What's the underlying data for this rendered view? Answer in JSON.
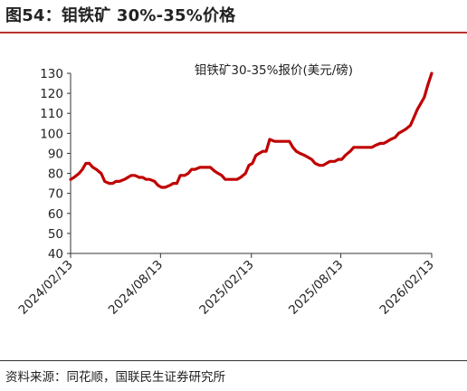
{
  "figure": {
    "title": "图54：钼铁矿 30%-35%价格",
    "source": "资料来源：同花顺，国联民生证券研究所"
  },
  "colors": {
    "line": "#c00000",
    "rule": "#b8322f",
    "axis": "#333333"
  },
  "chart_data": {
    "type": "line",
    "title": "钼铁矿30-35%报价(美元/磅)",
    "xlabel": "",
    "ylabel": "",
    "ylim": [
      40,
      130
    ],
    "yticks": [
      40,
      50,
      60,
      70,
      80,
      90,
      100,
      110,
      120,
      130
    ],
    "xlim": [
      "2024/02/13",
      "2026/02/13"
    ],
    "xticks": [
      "2024/02/13",
      "2024/08/13",
      "2025/02/13",
      "2025/08/13",
      "2026/02/13"
    ],
    "grid": false,
    "legend": "none",
    "series": [
      {
        "name": "钼铁矿30-35%报价(美元/磅)",
        "x": [
          "2024/02/13",
          "2024/02/20",
          "2024/03/01",
          "2024/03/08",
          "2024/03/15",
          "2024/03/22",
          "2024/03/29",
          "2024/04/05",
          "2024/04/15",
          "2024/04/22",
          "2024/05/01",
          "2024/05/08",
          "2024/05/15",
          "2024/05/22",
          "2024/06/01",
          "2024/06/08",
          "2024/06/15",
          "2024/06/22",
          "2024/07/01",
          "2024/07/08",
          "2024/07/15",
          "2024/07/22",
          "2024/08/01",
          "2024/08/08",
          "2024/08/15",
          "2024/08/22",
          "2024/09/01",
          "2024/09/08",
          "2024/09/15",
          "2024/09/22",
          "2024/10/01",
          "2024/10/08",
          "2024/10/15",
          "2024/10/22",
          "2024/11/01",
          "2024/11/08",
          "2024/11/15",
          "2024/11/22",
          "2024/12/01",
          "2024/12/08",
          "2024/12/15",
          "2024/12/22",
          "2025/01/01",
          "2025/01/08",
          "2025/01/15",
          "2025/01/22",
          "2025/02/01",
          "2025/02/08",
          "2025/02/15",
          "2025/02/22",
          "2025/03/01",
          "2025/03/08",
          "2025/03/15",
          "2025/03/22",
          "2025/04/01",
          "2025/04/08",
          "2025/04/15",
          "2025/04/22",
          "2025/05/01",
          "2025/05/08",
          "2025/05/15",
          "2025/05/22",
          "2025/06/01",
          "2025/06/08",
          "2025/06/15",
          "2025/06/22",
          "2025/07/01",
          "2025/07/08",
          "2025/07/15",
          "2025/07/22",
          "2025/08/01",
          "2025/08/08",
          "2025/08/15",
          "2025/08/22",
          "2025/09/01",
          "2025/09/08",
          "2025/09/15",
          "2025/09/22",
          "2025/10/01",
          "2025/10/08",
          "2025/10/15",
          "2025/10/22",
          "2025/11/01",
          "2025/11/08",
          "2025/11/15",
          "2025/11/22",
          "2025/12/01",
          "2025/12/08",
          "2025/12/15",
          "2025/12/22",
          "2026/01/01",
          "2026/01/08",
          "2026/01/15",
          "2026/01/22",
          "2026/01/29",
          "2026/02/05",
          "2026/02/13"
        ],
        "values": [
          77,
          78,
          80,
          82,
          85,
          85,
          83,
          82,
          80,
          76,
          75,
          75,
          76,
          76,
          77,
          78,
          79,
          79,
          78,
          78,
          77,
          77,
          76,
          74,
          73,
          73,
          74,
          75,
          75,
          79,
          79,
          80,
          82,
          82,
          83,
          83,
          83,
          83,
          81,
          80,
          79,
          77,
          77,
          77,
          77,
          78,
          80,
          84,
          85,
          89,
          90,
          91,
          91,
          97,
          96,
          96,
          96,
          96,
          96,
          93,
          91,
          90,
          89,
          88,
          87,
          85,
          84,
          84,
          85,
          86,
          86,
          87,
          87,
          89,
          91,
          93,
          93,
          93,
          93,
          93,
          93,
          94,
          95,
          95,
          96,
          97,
          98,
          100,
          101,
          102,
          104,
          108,
          112,
          115,
          118,
          124,
          130
        ]
      }
    ]
  }
}
